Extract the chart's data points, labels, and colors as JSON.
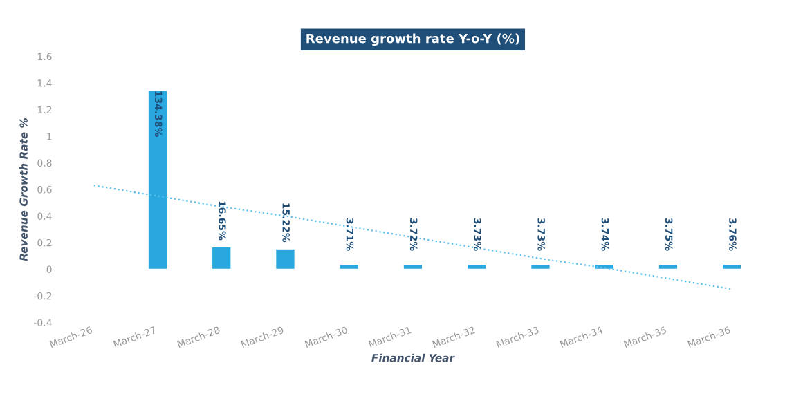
{
  "chart_data": {
    "type": "bar",
    "title": "Revenue growth rate Y-o-Y (%)",
    "xlabel": "Financial Year",
    "ylabel": "Revenue Growth Rate %",
    "categories": [
      "March-26",
      "March-27",
      "March-28",
      "March-29",
      "March-30",
      "March-31",
      "March-32",
      "March-33",
      "March-34",
      "March-35",
      "March-36"
    ],
    "series": [
      {
        "color": "#29a8e0",
        "values": [
          null,
          1.3438,
          0.1665,
          0.1522,
          0.0371,
          0.0372,
          0.0373,
          0.0373,
          0.0374,
          0.0375,
          0.0376
        ],
        "value_labels": [
          null,
          "134.38%",
          "16.65%",
          "15.22%",
          "3.71%",
          "3.72%",
          "3.73%",
          "3.73%",
          "3.74%",
          "3.75%",
          "3.76%"
        ]
      },
      {
        "type": "line",
        "color": "#5bc0eb",
        "line_style": "dotted",
        "values": [
          0.63,
          0.55,
          0.47,
          0.4,
          0.32,
          0.24,
          0.16,
          0.08,
          0.01,
          -0.07,
          -0.15
        ]
      }
    ],
    "ylim": [
      -0.4,
      1.6
    ],
    "yticks": [
      -0.4,
      -0.2,
      0,
      0.2,
      0.4,
      0.6,
      0.8,
      1,
      1.2,
      1.4,
      1.6
    ],
    "grid": false,
    "legend": false
  }
}
